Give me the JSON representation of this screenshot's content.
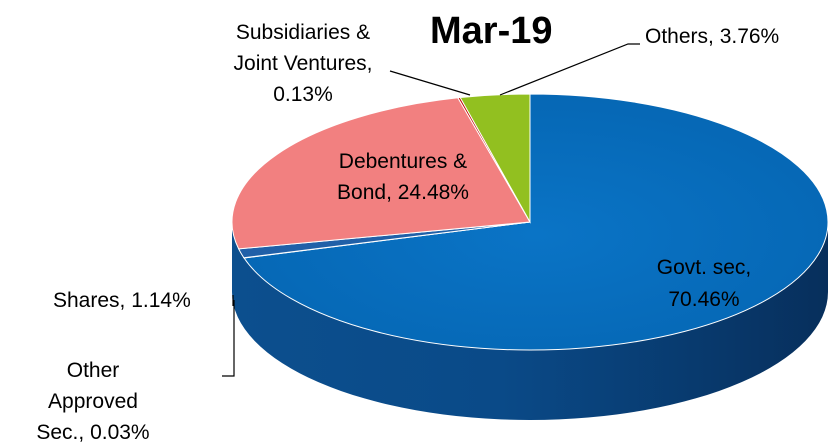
{
  "chart_data": {
    "type": "pie",
    "title": "Mar-19",
    "slices": [
      {
        "label": "Govt. sec",
        "value": 70.46,
        "display": "70.46%",
        "color": "#0070c0"
      },
      {
        "label": "Other Approved Sec.",
        "value": 0.03,
        "display": "0.03%",
        "color": "#7f7f7f"
      },
      {
        "label": "Shares",
        "value": 1.14,
        "display": "1.14%",
        "color": "#2060a8"
      },
      {
        "label": "Debentures & Bond",
        "value": 24.48,
        "display": "24.48%",
        "color": "#f28080"
      },
      {
        "label": "Subsidiaries & Joint Ventures",
        "value": 0.13,
        "display": "0.13%",
        "color": "#c00000"
      },
      {
        "label": "Others",
        "value": 3.76,
        "display": "3.76%",
        "color": "#92c020"
      }
    ],
    "labels": {
      "govt_line1": "Govt. sec,",
      "govt_line2": "70.46%",
      "deb_line1": "Debentures &",
      "deb_line2": "Bond, 24.48%",
      "subs_line1": "Subsidiaries &",
      "subs_line2": "Joint Ventures,",
      "subs_line3": "0.13%",
      "others": "Others, 3.76%",
      "shares": "Shares, 1.14%",
      "oas_line1": "Other",
      "oas_line2": "Approved",
      "oas_line3": "Sec., 0.03%"
    }
  }
}
